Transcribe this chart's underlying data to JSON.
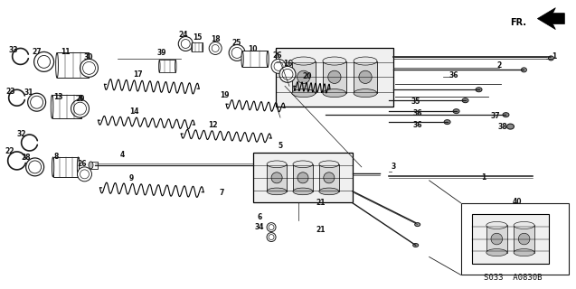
{
  "bg_color": "#ffffff",
  "fig_width": 6.37,
  "fig_height": 3.2,
  "dpi": 100,
  "line_color": "#1a1a1a",
  "text_color": "#111111",
  "font_size_label": 5.5,
  "bottom_text": "S033  A0830B",
  "gray": "#888888",
  "darkgray": "#555555",
  "lightgray": "#cccccc"
}
